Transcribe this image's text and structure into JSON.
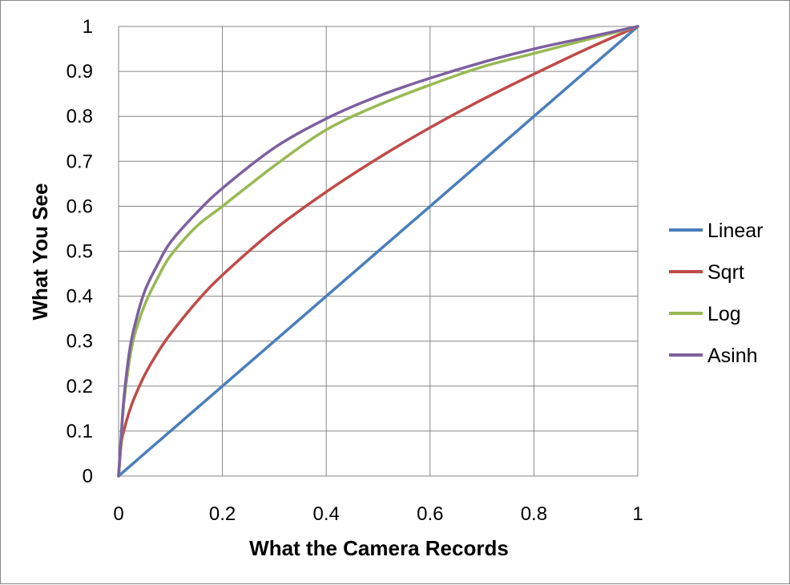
{
  "chart_data": {
    "type": "line",
    "title": "",
    "xlabel": "What the Camera Records",
    "ylabel": "What You See",
    "xlim": [
      0,
      1
    ],
    "ylim": [
      0,
      1
    ],
    "x_ticks": [
      "0",
      "0.2",
      "0.4",
      "0.6",
      "0.8",
      "1"
    ],
    "y_ticks": [
      "0",
      "0.1",
      "0.2",
      "0.3",
      "0.4",
      "0.5",
      "0.6",
      "0.7",
      "0.8",
      "0.9",
      "1"
    ],
    "grid": true,
    "legend_position": "right",
    "x": [
      0,
      0.005,
      0.01,
      0.02,
      0.03,
      0.05,
      0.075,
      0.1,
      0.15,
      0.2,
      0.3,
      0.4,
      0.5,
      0.6,
      0.7,
      0.8,
      0.9,
      1.0
    ],
    "series": [
      {
        "name": "Linear",
        "color": "#4a7ebb",
        "values": [
          0,
          0.005,
          0.01,
          0.02,
          0.03,
          0.05,
          0.075,
          0.1,
          0.15,
          0.2,
          0.3,
          0.4,
          0.5,
          0.6,
          0.7,
          0.8,
          0.9,
          1.0
        ]
      },
      {
        "name": "Sqrt",
        "color": "#be4b48",
        "values": [
          0,
          0.071,
          0.1,
          0.141,
          0.173,
          0.224,
          0.274,
          0.316,
          0.387,
          0.447,
          0.548,
          0.632,
          0.707,
          0.775,
          0.837,
          0.894,
          0.949,
          1.0
        ]
      },
      {
        "name": "Log",
        "color": "#98b954",
        "values": [
          0,
          0.08,
          0.16,
          0.25,
          0.31,
          0.38,
          0.44,
          0.49,
          0.555,
          0.6,
          0.69,
          0.77,
          0.825,
          0.87,
          0.91,
          0.94,
          0.97,
          1.0
        ]
      },
      {
        "name": "Asinh",
        "color": "#7d60a0",
        "values": [
          0,
          0.09,
          0.17,
          0.27,
          0.33,
          0.41,
          0.47,
          0.52,
          0.585,
          0.64,
          0.73,
          0.795,
          0.845,
          0.885,
          0.92,
          0.95,
          0.975,
          1.0
        ]
      }
    ]
  }
}
